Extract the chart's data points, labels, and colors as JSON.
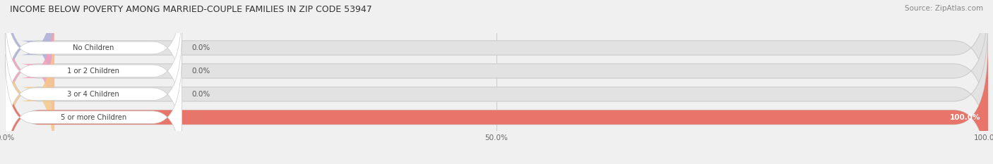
{
  "title": "INCOME BELOW POVERTY AMONG MARRIED-COUPLE FAMILIES IN ZIP CODE 53947",
  "source": "Source: ZipAtlas.com",
  "categories": [
    "No Children",
    "1 or 2 Children",
    "3 or 4 Children",
    "5 or more Children"
  ],
  "values": [
    0.0,
    0.0,
    0.0,
    100.0
  ],
  "bar_colors": [
    "#aab0d8",
    "#f2a0bc",
    "#f5c98a",
    "#e8756a"
  ],
  "background_color": "#f0f0f0",
  "bar_bg_color": "#e2e2e2",
  "label_bg_color": "#ffffff",
  "xlim": [
    0,
    100
  ],
  "xtick_labels": [
    "0.0%",
    "50.0%",
    "100.0%"
  ],
  "figsize": [
    14.06,
    2.33
  ],
  "dpi": 100
}
